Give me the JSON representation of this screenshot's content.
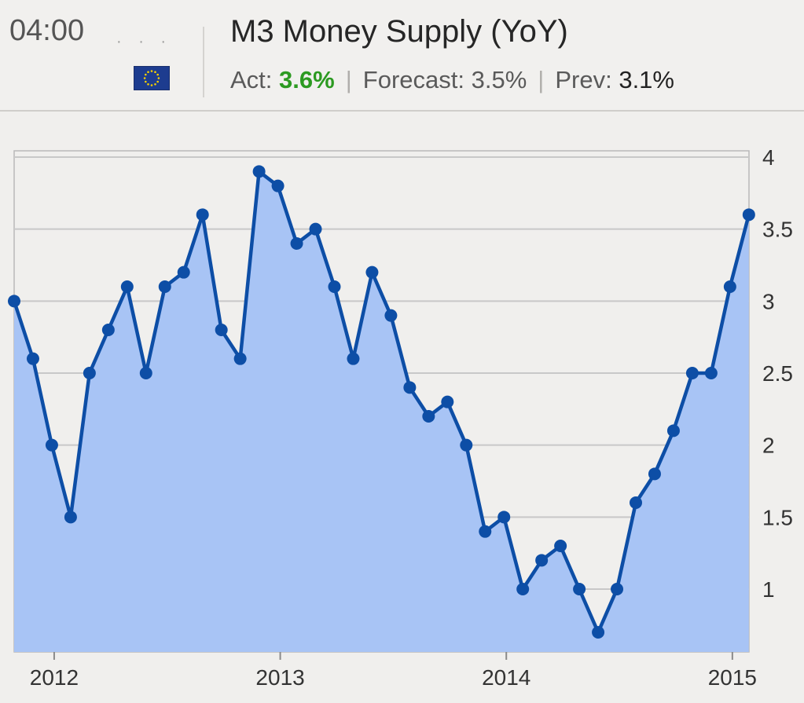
{
  "header": {
    "time": "04:00",
    "title": "M3 Money Supply (YoY)",
    "act_label": "Act:",
    "act_value": "3.6%",
    "forecast_label": "Forecast:",
    "forecast_value": "3.5%",
    "prev_label": "Prev:",
    "prev_value": "3.1%",
    "flag_icon": "eu-flag-icon"
  },
  "colors": {
    "line": "#0d4ea6",
    "area": "#a8c4f5",
    "act_value": "#2c9a21",
    "grid": "#c8c8c8"
  },
  "chart_data": {
    "type": "area",
    "y_ticks": [
      "1",
      "1.5",
      "2",
      "2.5",
      "3",
      "3.5",
      "4"
    ],
    "x_ticks": [
      "2012",
      "2013",
      "2014",
      "2015"
    ],
    "ylim": [
      0.7,
      4.05
    ],
    "series": [
      {
        "values": [
          3.0,
          2.6,
          2.0,
          1.5,
          2.5,
          2.8,
          3.1,
          2.5,
          3.1,
          3.2,
          3.6,
          2.8,
          2.6,
          3.9,
          3.8,
          3.4,
          3.5,
          3.1,
          2.6,
          3.2,
          2.9,
          2.4,
          2.2,
          2.3,
          2.0,
          1.4,
          1.5,
          1.0,
          1.2,
          1.3,
          1.0,
          0.7,
          1.0,
          1.6,
          1.8,
          2.1,
          2.5,
          2.5,
          3.1,
          3.6
        ]
      }
    ],
    "grid": true,
    "y_axis_position": "right"
  }
}
